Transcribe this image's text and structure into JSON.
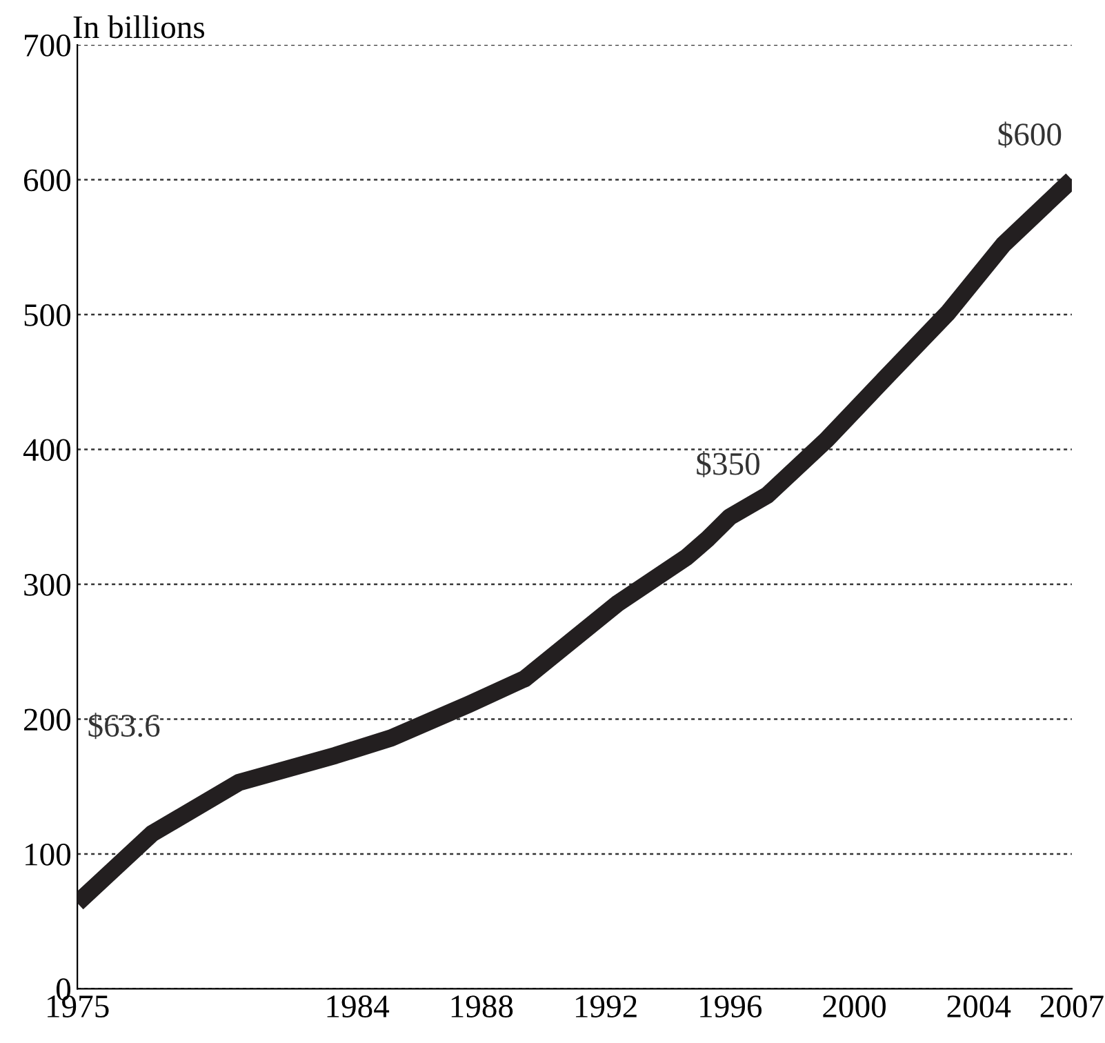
{
  "chart_data": {
    "type": "line",
    "ylabel": "In billions",
    "x": [
      1975,
      1977.4,
      1980.2,
      1983.3,
      1985.1,
      1987.6,
      1989.4,
      1992.4,
      1994.6,
      1995.3,
      1996,
      1997.2,
      1999.1,
      2001,
      2003,
      2004.8,
      2007
    ],
    "series": [
      {
        "color": "#231f20",
        "values": [
          63.6,
          115,
          153,
          173,
          186,
          211,
          230,
          286,
          320,
          334,
          350,
          366,
          407,
          453,
          501,
          552,
          600
        ]
      }
    ],
    "annotations": [
      "$63.6",
      {
        "text": "$350",
        "x": 1996,
        "y": 350
      },
      {
        "text": "$600",
        "x": 2007,
        "y": 600
      }
    ],
    "xlim": [
      1975,
      2007
    ],
    "xticks": [
      1975,
      1984,
      1988,
      1992,
      1996,
      2000,
      2004,
      2007
    ],
    "ylim": [
      0,
      700
    ],
    "yticks": [
      0,
      100,
      200,
      300,
      400,
      500,
      600,
      700
    ],
    "grid": "y",
    "line_style": "solid",
    "marker": "none"
  }
}
